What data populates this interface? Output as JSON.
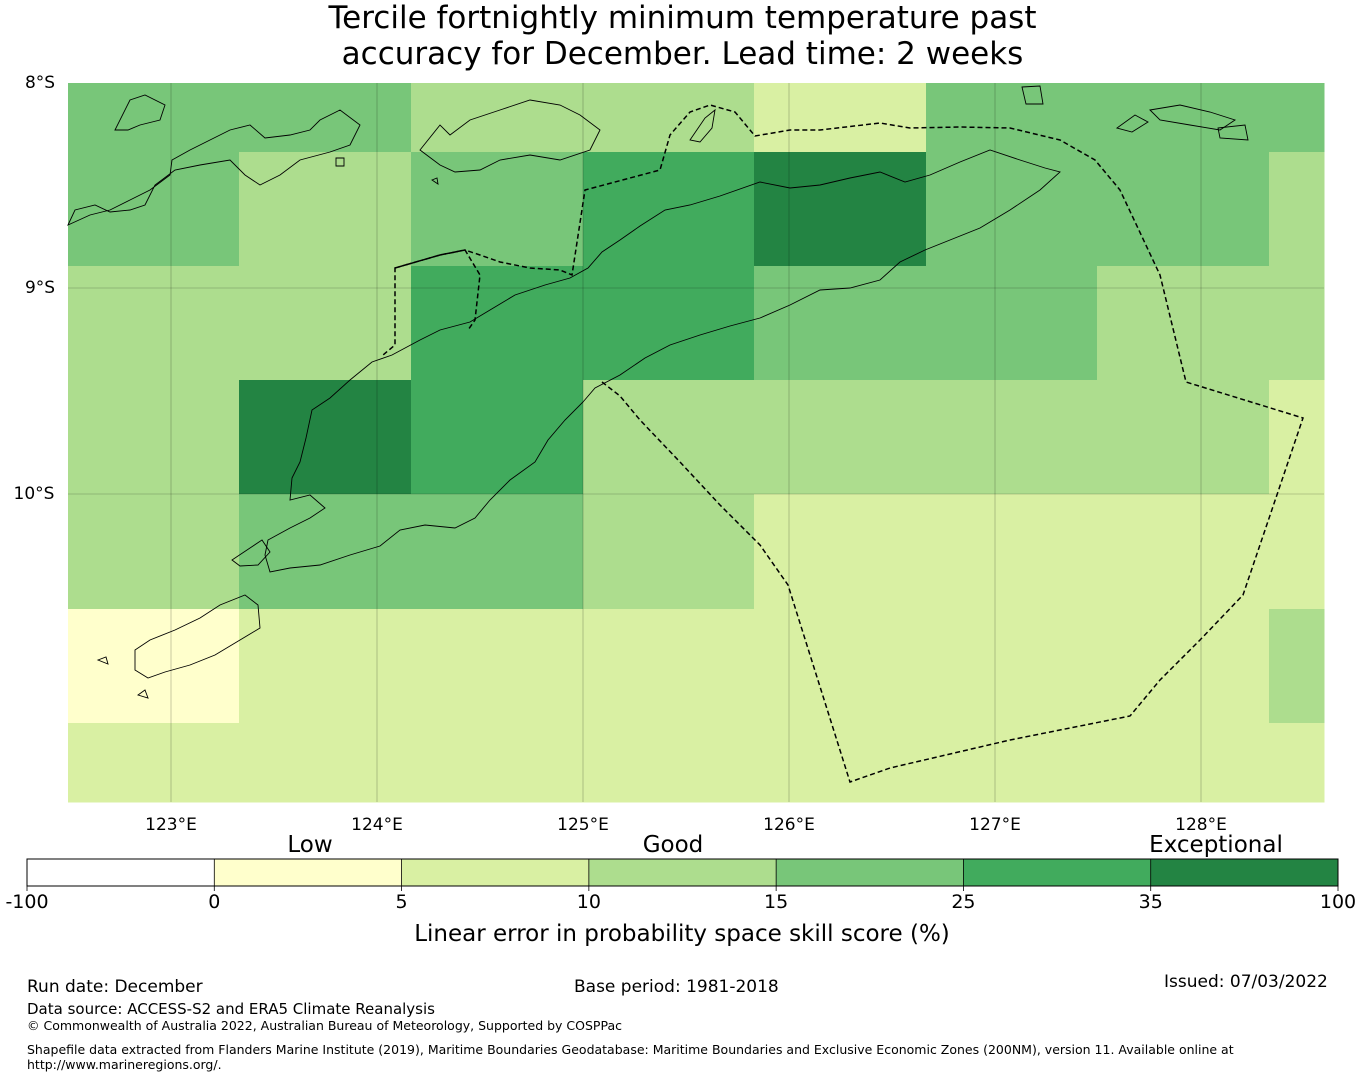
{
  "title": {
    "line1": "Tercile fortnightly minimum temperature past",
    "line2": "accuracy for December. Lead time: 2 weeks"
  },
  "map": {
    "lat_labels": [
      "8°S",
      "9°S",
      "10°S"
    ],
    "lon_labels": [
      "123°E",
      "124°E",
      "125°E",
      "126°E",
      "127°E",
      "128°E"
    ],
    "lon_range": [
      122.5,
      128.6
    ],
    "lat_range": [
      -8.0,
      -11.5
    ],
    "cell_size_deg": 0.83,
    "grid_rows": [
      [
        "s25",
        "s25",
        "s25",
        "s25",
        "s15",
        "s15",
        "s15",
        "s15",
        "s10",
        "s10",
        "s25",
        "s25",
        "s25",
        "s25",
        "s25"
      ],
      [
        "s25",
        "s25",
        "s15",
        "s15",
        "s25",
        "s25",
        "s35",
        "s35",
        "s50",
        "s50",
        "s25",
        "s25",
        "s25",
        "s25",
        "s15"
      ],
      [
        "s15",
        "s15",
        "s15",
        "s15",
        "s35",
        "s35",
        "s35",
        "s35",
        "s25",
        "s25",
        "s25",
        "s25",
        "s15",
        "s15",
        "s15"
      ],
      [
        "s15",
        "s15",
        "s50",
        "s50",
        "s35",
        "s35",
        "s15",
        "s15",
        "s15",
        "s15",
        "s15",
        "s15",
        "s15",
        "s15",
        "s10"
      ],
      [
        "s15",
        "s15",
        "s25",
        "s25",
        "s25",
        "s25",
        "s15",
        "s15",
        "s10",
        "s10",
        "s10",
        "s10",
        "s10",
        "s10",
        "s10"
      ],
      [
        "s05",
        "s05",
        "s10",
        "s10",
        "s10",
        "s10",
        "s10",
        "s10",
        "s10",
        "s10",
        "s10",
        "s10",
        "s10",
        "s10",
        "s15"
      ],
      [
        "s10",
        "s10",
        "s10",
        "s10",
        "s10",
        "s10",
        "s10",
        "s10",
        "s10",
        "s10",
        "s10",
        "s10",
        "s10",
        "s10",
        "s10"
      ]
    ]
  },
  "legend": {
    "category_labels": [
      "Low",
      "Good",
      "Exceptional"
    ],
    "tick_labels": [
      "-100",
      "0",
      "5",
      "10",
      "15",
      "25",
      "35",
      "100"
    ],
    "colors": [
      "#ffffff",
      "#ffffcc",
      "#d9f0a3",
      "#addd8e",
      "#78c679",
      "#41ab5d",
      "#238443"
    ],
    "axis_label": "Linear error in probability space skill score (%)"
  },
  "colors": {
    "s05": "#ffffcc",
    "s10": "#d9f0a3",
    "s15": "#addd8e",
    "s25": "#78c679",
    "s35": "#41ab5d",
    "s50": "#238443"
  },
  "footer": {
    "run_date": "Run date: December",
    "base_period": "Base period: 1981-2018",
    "issued": "Issued: 07/03/2022",
    "data_source": "Data source: ACCESS-S2 and ERA5 Climate Reanalysis",
    "copyright": "© Commonwealth of Australia 2022, Australian Bureau of Meteorology, Supported by COSPPac",
    "shapefile_line1": "Shapefile data extracted from Flanders Marine Institute (2019), Maritime Boundaries Geodatabase: Maritime Boundaries and Exclusive Economic Zones (200NM), version 11. Available online at",
    "shapefile_line2": "http://www.marineregions.org/."
  }
}
